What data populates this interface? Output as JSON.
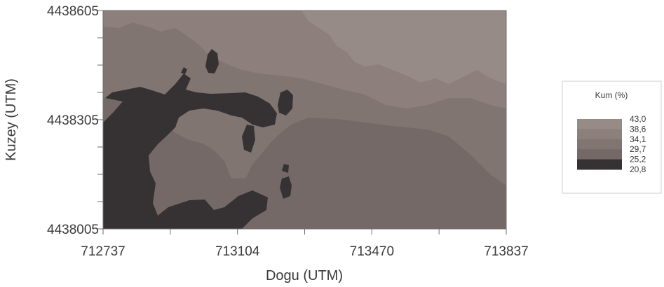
{
  "chart_data": {
    "type": "heatmap",
    "title": "",
    "xlabel": "Dogu (UTM)",
    "ylabel": "Kuzey (UTM)",
    "xlim": [
      712737,
      713837
    ],
    "ylim": [
      4438005,
      4438605
    ],
    "x_tick_labels": [
      "712737",
      "713104",
      "713470",
      "713837"
    ],
    "y_tick_labels": [
      "4438005",
      "4438305",
      "4438605"
    ],
    "legend": {
      "title": "Kum (%)",
      "position": "right",
      "levels": [
        "43,0",
        "38,6",
        "34,1",
        "29,7",
        "25,2",
        "20,8"
      ],
      "classes": [
        {
          "range": [
            38.6,
            43.0
          ],
          "color": "#978b88"
        },
        {
          "range": [
            34.1,
            38.6
          ],
          "color": "#8c7f7c"
        },
        {
          "range": [
            29.7,
            34.1
          ],
          "color": "#817572"
        },
        {
          "range": [
            25.2,
            29.7
          ],
          "color": "#746966"
        },
        {
          "range": [
            20.8,
            25.2
          ],
          "color": "#363234"
        }
      ]
    }
  }
}
